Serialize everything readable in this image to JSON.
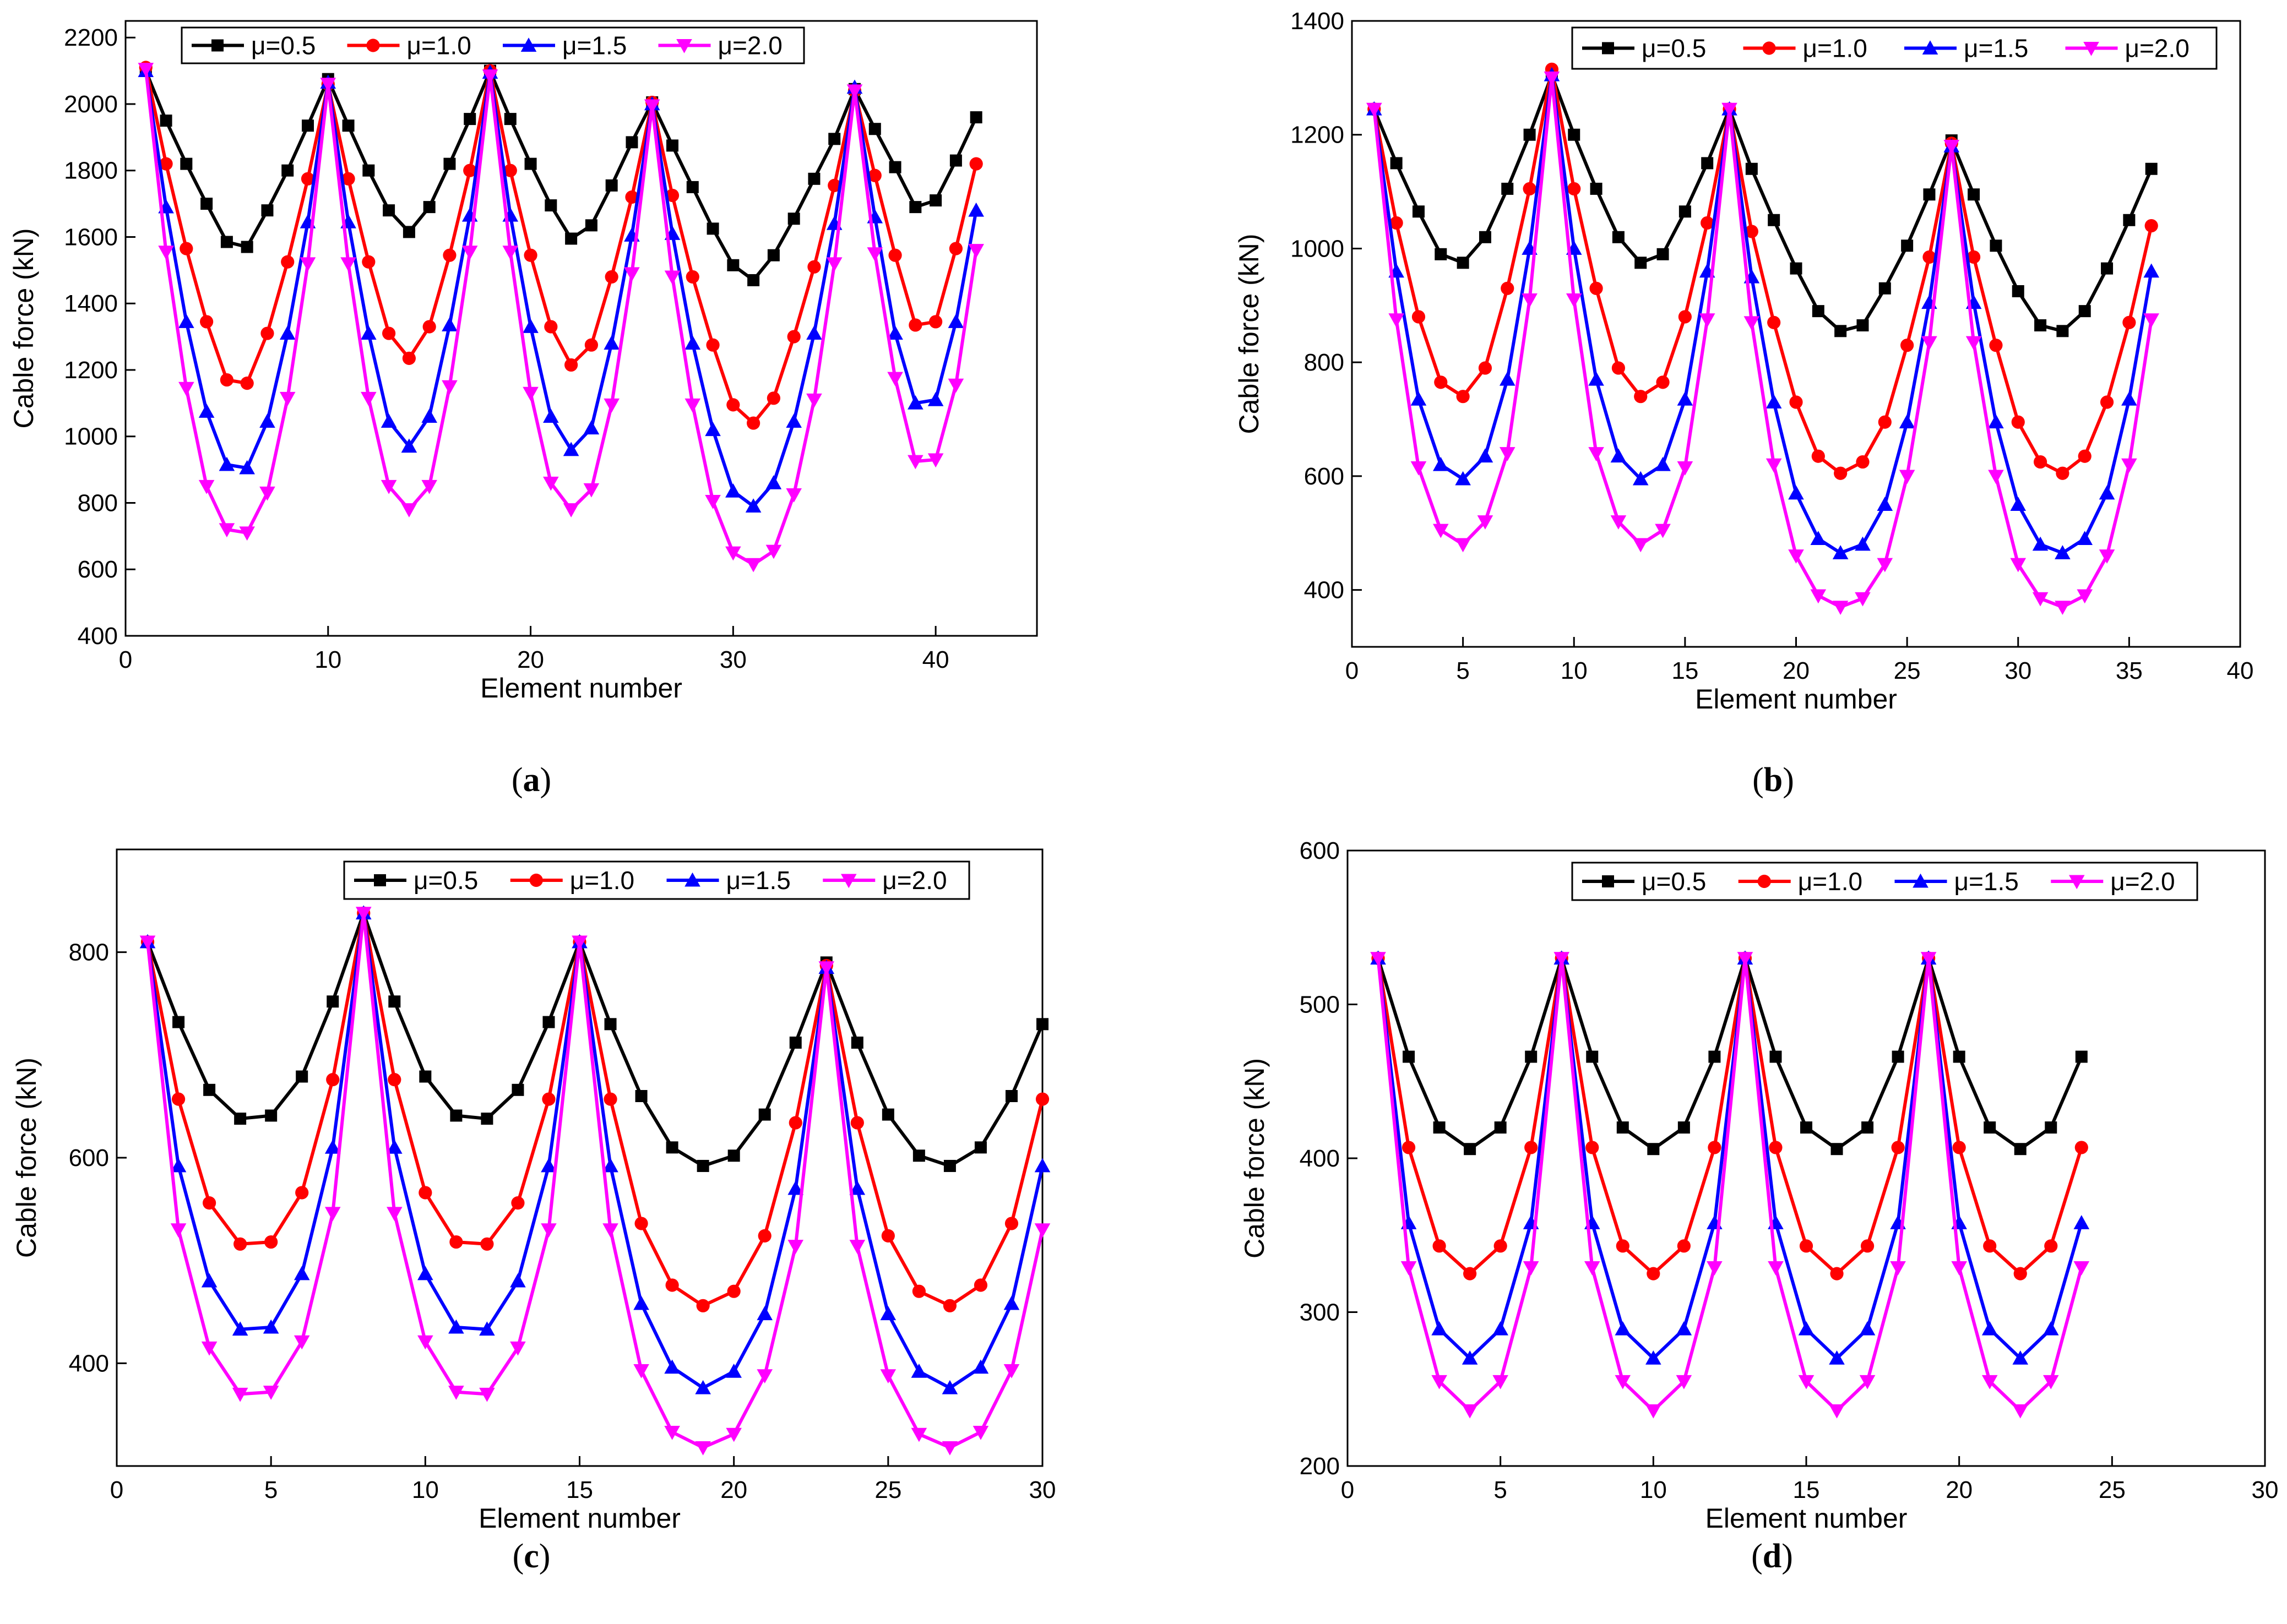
{
  "legend_labels": [
    "μ=0.5",
    "μ=1.0",
    "μ=1.5",
    "μ=2.0"
  ],
  "series_colors": [
    "#000000",
    "#ff0000",
    "#0000ff",
    "#ff00ff"
  ],
  "marker_shapes": [
    "square",
    "circle",
    "triangle-up",
    "triangle-down"
  ],
  "chart_data": [
    {
      "type": "line",
      "caption": "a",
      "xlabel": "Element number",
      "ylabel": "Cable force (kN)",
      "xlim": [
        0,
        45
      ],
      "ylim": [
        400,
        2250
      ],
      "xticks": [
        0,
        10,
        20,
        30,
        40
      ],
      "yticks": [
        400,
        600,
        800,
        1000,
        1200,
        1400,
        1600,
        1800,
        2000,
        2200
      ],
      "grid": false,
      "legend_position": "top",
      "x": [
        1,
        2,
        3,
        4,
        5,
        6,
        7,
        8,
        9,
        10,
        11,
        12,
        13,
        14,
        15,
        16,
        17,
        18,
        19,
        20,
        21,
        22,
        23,
        24,
        25,
        26,
        27,
        28,
        29,
        30,
        31,
        32,
        33,
        34,
        35,
        36,
        37,
        38,
        39,
        40,
        41,
        42
      ],
      "series": [
        {
          "name": "μ=0.5",
          "values": [
            2100,
            1950,
            1820,
            1700,
            1585,
            1570,
            1680,
            1800,
            1935,
            2075,
            1935,
            1800,
            1680,
            1615,
            1690,
            1820,
            1955,
            2100,
            1955,
            1820,
            1695,
            1595,
            1635,
            1755,
            1885,
            2005,
            1875,
            1750,
            1625,
            1515,
            1470,
            1545,
            1655,
            1775,
            1895,
            2045,
            1925,
            1810,
            1690,
            1710,
            1830,
            1960
          ]
        },
        {
          "name": "μ=1.0",
          "values": [
            2110,
            1820,
            1565,
            1345,
            1170,
            1160,
            1310,
            1525,
            1775,
            2060,
            1775,
            1525,
            1310,
            1235,
            1330,
            1545,
            1800,
            2100,
            1800,
            1545,
            1330,
            1215,
            1275,
            1480,
            1720,
            2005,
            1725,
            1480,
            1275,
            1095,
            1040,
            1115,
            1300,
            1510,
            1755,
            2040,
            1785,
            1545,
            1335,
            1345,
            1565,
            1820
          ]
        },
        {
          "name": "μ=1.5",
          "values": [
            2100,
            1690,
            1345,
            1075,
            915,
            905,
            1045,
            1310,
            1645,
            2065,
            1645,
            1310,
            1045,
            970,
            1060,
            1335,
            1665,
            2095,
            1665,
            1330,
            1060,
            960,
            1025,
            1280,
            1605,
            2000,
            1610,
            1280,
            1020,
            835,
            790,
            860,
            1045,
            1310,
            1640,
            2050,
            1660,
            1310,
            1100,
            1110,
            1345,
            1680
          ]
        },
        {
          "name": "μ=2.0",
          "values": [
            2105,
            1555,
            1145,
            850,
            720,
            710,
            830,
            1115,
            1520,
            2060,
            1520,
            1115,
            850,
            780,
            850,
            1150,
            1555,
            2085,
            1555,
            1130,
            860,
            780,
            840,
            1095,
            1490,
            1995,
            1480,
            1095,
            805,
            650,
            615,
            655,
            825,
            1110,
            1520,
            2040,
            1550,
            1175,
            925,
            930,
            1155,
            1560
          ]
        }
      ]
    },
    {
      "type": "line",
      "caption": "b",
      "xlabel": "Element number",
      "ylabel": "Cable force (kN)",
      "xlim": [
        0,
        40
      ],
      "ylim": [
        300,
        1400
      ],
      "xticks": [
        0,
        5,
        10,
        15,
        20,
        25,
        30,
        35,
        40
      ],
      "yticks": [
        400,
        600,
        800,
        1000,
        1200,
        1400
      ],
      "grid": false,
      "legend_position": "top",
      "x": [
        1,
        2,
        3,
        4,
        5,
        6,
        7,
        8,
        9,
        10,
        11,
        12,
        13,
        14,
        15,
        16,
        17,
        18,
        19,
        20,
        21,
        22,
        23,
        24,
        25,
        26,
        27,
        28,
        29,
        30,
        31,
        32,
        33,
        34,
        35,
        36
      ],
      "series": [
        {
          "name": "μ=0.5",
          "values": [
            1245,
            1150,
            1065,
            990,
            975,
            1020,
            1105,
            1200,
            1305,
            1200,
            1105,
            1020,
            975,
            990,
            1065,
            1150,
            1245,
            1140,
            1050,
            965,
            890,
            855,
            865,
            930,
            1005,
            1095,
            1190,
            1095,
            1005,
            925,
            865,
            855,
            890,
            965,
            1050,
            1140
          ]
        },
        {
          "name": "μ=1.0",
          "values": [
            1245,
            1045,
            880,
            765,
            740,
            790,
            930,
            1105,
            1315,
            1105,
            930,
            790,
            740,
            765,
            880,
            1045,
            1245,
            1030,
            870,
            730,
            635,
            605,
            625,
            695,
            830,
            985,
            1185,
            985,
            830,
            695,
            625,
            605,
            635,
            730,
            870,
            1040
          ]
        },
        {
          "name": "μ=1.5",
          "values": [
            1245,
            960,
            735,
            620,
            595,
            635,
            770,
            1000,
            1305,
            1000,
            770,
            635,
            595,
            620,
            735,
            960,
            1245,
            950,
            730,
            570,
            490,
            465,
            480,
            550,
            695,
            905,
            1180,
            905,
            695,
            550,
            480,
            465,
            490,
            570,
            735,
            960
          ]
        },
        {
          "name": "μ=2.0",
          "values": [
            1245,
            875,
            615,
            505,
            480,
            520,
            640,
            910,
            1300,
            910,
            640,
            520,
            480,
            505,
            615,
            875,
            1245,
            870,
            620,
            460,
            390,
            370,
            385,
            445,
            600,
            835,
            1180,
            835,
            600,
            445,
            385,
            370,
            390,
            460,
            620,
            875
          ]
        }
      ]
    },
    {
      "type": "line",
      "caption": "c",
      "xlabel": "Element number",
      "ylabel": "Cable force (kN)",
      "xlim": [
        0,
        30
      ],
      "ylim": [
        300,
        900
      ],
      "xticks": [
        0,
        5,
        10,
        15,
        20,
        25,
        30
      ],
      "yticks": [
        400,
        600,
        800
      ],
      "grid": false,
      "legend_position": "top",
      "x": [
        1,
        2,
        3,
        4,
        5,
        6,
        7,
        8,
        9,
        10,
        11,
        12,
        13,
        14,
        15,
        16,
        17,
        18,
        19,
        20,
        21,
        22,
        23,
        24,
        25,
        26,
        27,
        28,
        29,
        30
      ],
      "series": [
        {
          "name": "μ=0.5",
          "values": [
            810,
            732,
            666,
            638,
            641,
            679,
            752,
            838,
            752,
            679,
            641,
            638,
            666,
            732,
            810,
            730,
            660,
            610,
            592,
            602,
            642,
            712,
            790,
            712,
            642,
            602,
            592,
            610,
            660,
            730
          ]
        },
        {
          "name": "μ=1.0",
          "values": [
            810,
            657,
            556,
            516,
            518,
            566,
            676,
            838,
            676,
            566,
            518,
            516,
            556,
            657,
            810,
            657,
            536,
            476,
            456,
            470,
            524,
            634,
            787,
            634,
            524,
            470,
            456,
            476,
            536,
            657
          ]
        },
        {
          "name": "μ=1.5",
          "values": [
            810,
            592,
            480,
            433,
            435,
            487,
            610,
            838,
            610,
            487,
            435,
            433,
            480,
            592,
            810,
            592,
            458,
            396,
            376,
            392,
            448,
            570,
            785,
            570,
            448,
            392,
            376,
            396,
            458,
            592
          ]
        },
        {
          "name": "μ=2.0",
          "values": [
            810,
            530,
            415,
            370,
            372,
            421,
            546,
            838,
            546,
            421,
            372,
            370,
            415,
            530,
            810,
            530,
            393,
            333,
            318,
            331,
            388,
            514,
            785,
            514,
            388,
            331,
            318,
            333,
            393,
            530
          ]
        }
      ]
    },
    {
      "type": "line",
      "caption": "d",
      "xlabel": "Element number",
      "ylabel": "Cable force (kN)",
      "xlim": [
        0,
        30
      ],
      "ylim": [
        200,
        600
      ],
      "xticks": [
        0,
        5,
        10,
        15,
        20,
        25,
        30
      ],
      "yticks": [
        200,
        300,
        400,
        500,
        600
      ],
      "grid": false,
      "legend_position": "top",
      "x": [
        1,
        2,
        3,
        4,
        5,
        6,
        7,
        8,
        9,
        10,
        11,
        12,
        13,
        14,
        15,
        16,
        17,
        18,
        19,
        20,
        21,
        22,
        23,
        24
      ],
      "series": [
        {
          "name": "μ=0.5",
          "values": [
            530,
            466,
            420,
            406,
            420,
            466,
            530,
            466,
            420,
            406,
            420,
            466,
            530,
            466,
            420,
            406,
            420,
            466,
            530,
            466,
            420,
            406,
            420,
            466
          ]
        },
        {
          "name": "μ=1.0",
          "values": [
            530,
            407,
            343,
            325,
            343,
            407,
            530,
            407,
            343,
            325,
            343,
            407,
            530,
            407,
            343,
            325,
            343,
            407,
            530,
            407,
            343,
            325,
            343,
            407
          ]
        },
        {
          "name": "μ=1.5",
          "values": [
            530,
            358,
            289,
            270,
            289,
            358,
            530,
            358,
            289,
            270,
            289,
            358,
            530,
            358,
            289,
            270,
            289,
            358,
            530,
            358,
            289,
            270,
            289,
            358
          ]
        },
        {
          "name": "μ=2.0",
          "values": [
            530,
            329,
            255,
            236,
            255,
            329,
            530,
            329,
            255,
            236,
            255,
            329,
            530,
            329,
            255,
            236,
            255,
            329,
            530,
            329,
            255,
            236,
            255,
            329
          ]
        }
      ]
    }
  ]
}
